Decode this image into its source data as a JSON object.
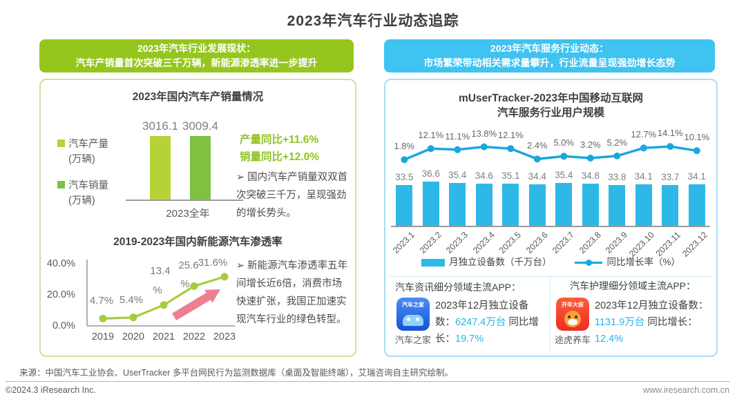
{
  "page": {
    "title": "2023年汽车行业动态追踪",
    "source": "来源：中国汽车工业协会、UserTracker 多平台网民行为监测数据库（桌面及智能终端），艾瑞咨询自主研究绘制。",
    "copyright": "©2024.3 iResearch Inc.",
    "website": "www.iresearch.com.cn"
  },
  "colors": {
    "green": "#95c61e",
    "green_border": "#cde29b",
    "green_text": "#8fc31f",
    "bar_production": "#b5d337",
    "bar_sales": "#7fc241",
    "line_green": "#a6cc3d",
    "arrow_pink": "#ef7e93",
    "blue": "#3fc3f0",
    "blue_border": "#a8ddf5",
    "bar_cyan": "#2db8e8",
    "line_cyan": "#1aa7de",
    "cyan_text": "#29b3e6"
  },
  "left": {
    "header": {
      "line1": "2023年汽车行业发展现状：",
      "line2": "汽车产销量首次突破三千万辆，新能源渗透率进一步提升"
    },
    "growth": {
      "line1": "产量同比+11.6%",
      "line2": "销量同比+12.0%"
    },
    "bullet1": "➢ 国内汽车产销量双双首次突破三千万，呈现强劲的增长势头。",
    "bullet2": "➢ 新能源汽车渗透率五年间增长近6倍，消费市场快速扩张，我国正加速实现汽车行业的绿色转型。"
  },
  "right": {
    "header": {
      "line1": "2023年汽车服务行业动态：",
      "line2": "市场繁荣带动相关需求量攀升，行业流量呈现强劲增长态势"
    },
    "title1": "mUserTracker-2023年中国移动互联网",
    "title2": "汽车服务行业用户规模",
    "apps": [
      {
        "section_title": "汽车资讯细分领域主流APP：",
        "icon_badge": "汽车之家",
        "icon_caption": "汽车之家",
        "prefix": "2023年12月独立设备数：",
        "devices": "6247.4万台",
        "growth_label": "同比增长：",
        "growth": "19.7%"
      },
      {
        "section_title": "汽车护理细分领域主流APP：",
        "icon_badge": "开年大促",
        "icon_caption": "途虎养车",
        "prefix": "2023年12月独立设备数：",
        "devices": "1131.9万台",
        "growth_label": "同比增长：",
        "growth": "12.4%"
      }
    ]
  },
  "chart_data": [
    {
      "id": "production_sales_2023",
      "type": "bar",
      "title": "2023年国内汽车产销量情况",
      "categories": [
        "2023全年"
      ],
      "series": [
        {
          "name": "汽车产量",
          "unit_label": "(万辆)",
          "values": [
            3016.1
          ],
          "color": "#b5d337"
        },
        {
          "name": "汽车销量",
          "unit_label": "(万辆)",
          "values": [
            3009.4
          ],
          "color": "#7fc241"
        }
      ],
      "annotations": [
        "产量同比+11.6%",
        "销量同比+12.0%"
      ],
      "legend_position": "left"
    },
    {
      "id": "nev_penetration",
      "type": "line",
      "title": "2019-2023年国内新能源汽车渗透率",
      "x": [
        "2019",
        "2020",
        "2021",
        "2022",
        "2023"
      ],
      "values": [
        4.7,
        5.4,
        13.4,
        25.6,
        31.6
      ],
      "unit": "%",
      "ylim": [
        0,
        40
      ],
      "yticks": [
        "40.0%",
        "20.0%",
        "0.0%"
      ],
      "color": "#a6cc3d",
      "annotation_arrow": "up-right"
    },
    {
      "id": "auto_service_user_scale",
      "type": "bar+line",
      "title": "mUserTracker-2023年中国移动互联网汽车服务行业用户规模",
      "categories": [
        "2023.1",
        "2023.2",
        "2023.3",
        "2023.4",
        "2023.5",
        "2023.6",
        "2023.7",
        "2023.8",
        "2023.9",
        "2023.10",
        "2023.11",
        "2023.12"
      ],
      "series": [
        {
          "name": "月独立设备数（千万台）",
          "type": "bar",
          "color": "#2db8e8",
          "values": [
            33.5,
            36.6,
            35.4,
            34.6,
            35.1,
            34.4,
            35.4,
            34.8,
            33.8,
            34.1,
            33.7,
            34.1
          ]
        },
        {
          "name": "同比增长率（%）",
          "type": "line",
          "color": "#1aa7de",
          "values": [
            1.8,
            12.1,
            11.1,
            13.8,
            12.1,
            2.4,
            5.0,
            3.2,
            5.2,
            12.7,
            14.1,
            10.1
          ]
        }
      ],
      "legend_position": "bottom"
    }
  ]
}
